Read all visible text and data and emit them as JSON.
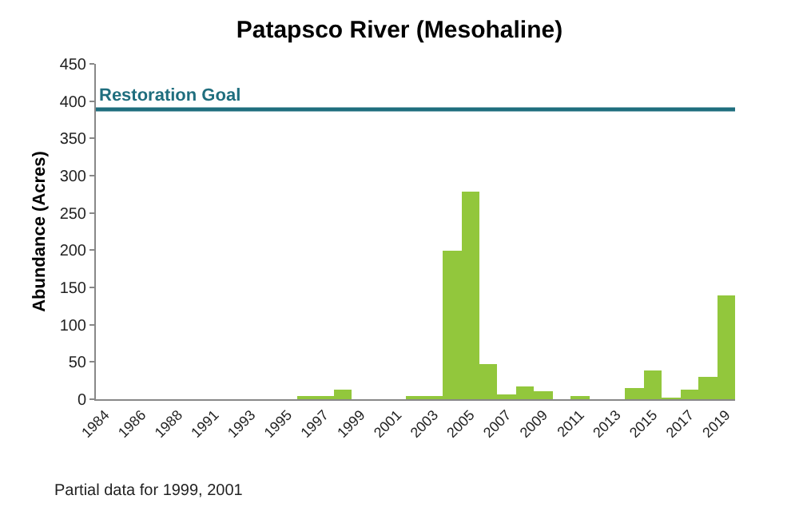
{
  "chart_data": {
    "type": "bar",
    "title": "Patapsco River (Mesohaline)",
    "ylabel": "Abundance (Acres)",
    "categories": [
      "1984",
      null,
      "1986",
      null,
      "1988",
      null,
      "1991",
      null,
      "1993",
      null,
      "1995",
      null,
      "1997",
      null,
      "1999",
      null,
      "2001",
      null,
      "2003",
      null,
      "2005",
      null,
      "2007",
      null,
      "2009",
      null,
      "2011",
      null,
      "2013",
      null,
      "2015",
      null,
      "2017",
      null,
      "2019"
    ],
    "values": [
      0,
      0,
      0,
      0,
      0,
      0,
      0,
      0,
      0,
      0,
      0,
      3,
      3,
      13,
      0,
      0,
      0,
      5,
      5,
      200,
      278,
      47,
      6,
      17,
      10,
      0,
      3,
      0,
      0,
      15,
      38,
      2,
      13,
      29,
      140
    ],
    "color": "#92c73c",
    "ylim": [
      0,
      450
    ],
    "yticks": [
      0,
      50,
      100,
      150,
      200,
      250,
      300,
      350,
      400,
      450
    ],
    "grid": false,
    "ref_lines": [
      {
        "axis": "y",
        "value": 389,
        "label": "Restoration Goal",
        "color": "#1f6e7e"
      }
    ],
    "annotations": [
      "Partial data for 1999, 2001"
    ]
  }
}
